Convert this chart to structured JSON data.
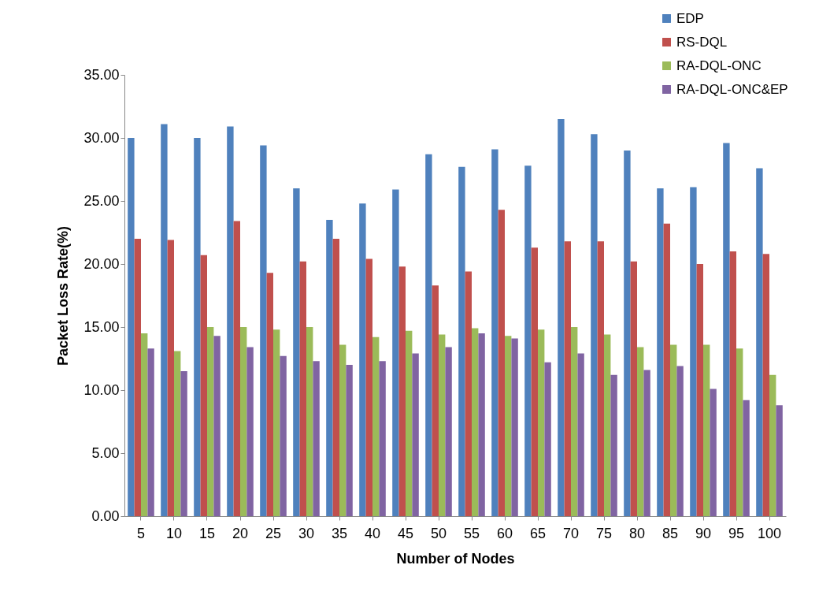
{
  "chart_data": {
    "type": "bar",
    "xlabel": "Number of Nodes",
    "ylabel": "Packet Loss Rate(%)",
    "categories": [
      "5",
      "10",
      "15",
      "20",
      "25",
      "30",
      "35",
      "40",
      "45",
      "50",
      "55",
      "60",
      "65",
      "70",
      "75",
      "80",
      "85",
      "90",
      "95",
      "100"
    ],
    "series": [
      {
        "name": "EDP",
        "color": "#4f81bd",
        "values": [
          30.0,
          31.1,
          30.0,
          30.9,
          29.4,
          26.0,
          23.5,
          24.8,
          25.9,
          28.7,
          27.7,
          29.1,
          27.8,
          31.5,
          30.3,
          29.0,
          26.0,
          26.1,
          29.6,
          27.6
        ]
      },
      {
        "name": "RS-DQL",
        "color": "#c0504d",
        "values": [
          22.0,
          21.9,
          20.7,
          23.4,
          19.3,
          20.2,
          22.0,
          20.4,
          19.8,
          18.3,
          19.4,
          24.3,
          21.3,
          21.8,
          21.8,
          20.2,
          23.2,
          20.0,
          21.0,
          20.8
        ]
      },
      {
        "name": "RA-DQL-ONC",
        "color": "#9bbb59",
        "values": [
          14.5,
          13.1,
          15.0,
          15.0,
          14.8,
          15.0,
          13.6,
          14.2,
          14.7,
          14.4,
          14.9,
          14.3,
          14.8,
          15.0,
          14.4,
          13.4,
          13.6,
          13.6,
          13.3,
          11.2
        ]
      },
      {
        "name": "RA-DQL-ONC&EP",
        "color": "#8064a2",
        "values": [
          13.3,
          11.5,
          14.3,
          13.4,
          12.7,
          12.3,
          12.0,
          12.3,
          12.9,
          13.4,
          14.5,
          14.1,
          12.2,
          12.9,
          11.2,
          11.6,
          11.9,
          10.1,
          9.2,
          8.8
        ]
      }
    ],
    "ylim": [
      0,
      35
    ],
    "yticks": [
      {
        "value": 0,
        "label": "0.00"
      },
      {
        "value": 5,
        "label": "5.00"
      },
      {
        "value": 10,
        "label": "10.00"
      },
      {
        "value": 15,
        "label": "15.00"
      },
      {
        "value": 20,
        "label": "20.00"
      },
      {
        "value": 25,
        "label": "25.00"
      },
      {
        "value": 30,
        "label": "30.00"
      },
      {
        "value": 35,
        "label": "35.00"
      }
    ],
    "grid": false,
    "legend": "top right"
  }
}
